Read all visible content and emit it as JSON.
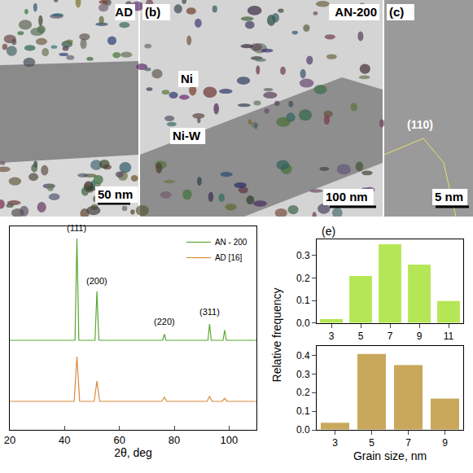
{
  "images": [
    {
      "labels": [
        "AD"
      ],
      "scale_bar": "50 nm"
    },
    {
      "labels": [
        "(b)",
        "AN-200",
        "Ni",
        "Ni-W"
      ],
      "scale_bar": "100 nm"
    },
    {
      "labels": [
        "(c)",
        "(110)"
      ],
      "scale_bar": "5 nm"
    }
  ],
  "chart_data": [
    {
      "type": "line",
      "xlabel": "2θ, deg",
      "legend": "top right",
      "tick_labels": "x",
      "grid": false,
      "xlim": [
        20,
        110
      ],
      "xticks": [
        20,
        40,
        60,
        80,
        100
      ],
      "ylim": [
        0,
        100
      ],
      "series": [
        {
          "name": "AN - 200",
          "color": "#5aa832",
          "x": [
            20,
            43.8,
            44.5,
            45.2,
            51.1,
            51.8,
            52.5,
            75.8,
            76.4,
            77,
            92.3,
            92.9,
            93.5,
            97.8,
            98.4,
            99,
            110
          ],
          "values": [
            44,
            44,
            94,
            44,
            44,
            68,
            44,
            44,
            47,
            44,
            44,
            52,
            44,
            44,
            49,
            44,
            44
          ]
        },
        {
          "name": "AD [16]",
          "color": "#d98a3a",
          "x": [
            20,
            43.5,
            44.5,
            45.5,
            50.8,
            51.8,
            52.8,
            75.5,
            76.4,
            77.3,
            92,
            92.9,
            93.8,
            97.5,
            98.4,
            99.3,
            110
          ],
          "values": [
            14,
            14,
            36,
            14,
            14,
            24,
            14,
            14,
            16,
            14,
            14,
            16.5,
            14,
            14,
            15.5,
            14,
            14
          ]
        }
      ],
      "annotations": [
        {
          "text": "(111)",
          "x": 44.5,
          "y": 96
        },
        {
          "text": "(200)",
          "x": 51.8,
          "y": 70
        },
        {
          "text": "(220)",
          "x": 76.4,
          "y": 50
        },
        {
          "text": "(311)",
          "x": 92.9,
          "y": 55
        }
      ]
    },
    {
      "type": "bar",
      "title": "(e)",
      "color": "#b5e655",
      "x": [
        3,
        5,
        7,
        9,
        11
      ],
      "values": [
        0.02,
        0.21,
        0.35,
        0.26,
        0.1
      ],
      "xlim": [
        2,
        12
      ],
      "xticks": [
        3,
        5,
        7,
        9,
        11
      ],
      "ylim": [
        0,
        0.37
      ],
      "yticks": [
        {
          "value": 0,
          "label": "0.0"
        },
        {
          "value": 0.1,
          "label": "0.1"
        },
        {
          "value": 0.2,
          "label": "0.2"
        },
        {
          "value": 0.3,
          "label": "0.3"
        }
      ]
    },
    {
      "type": "bar",
      "color": "#c9a85c",
      "xlabel": "Grain size, nm",
      "ylabel": "Relative frequency",
      "x": [
        3,
        5,
        7,
        9
      ],
      "values": [
        0.04,
        0.41,
        0.35,
        0.17
      ],
      "xlim": [
        2,
        10
      ],
      "xticks": [
        3,
        5,
        7,
        9
      ],
      "ylim": [
        0,
        0.45
      ],
      "yticks": [
        {
          "value": 0,
          "label": "0.0"
        },
        {
          "value": 0.1,
          "label": "0.1"
        },
        {
          "value": 0.2,
          "label": "0.2"
        },
        {
          "value": 0.3,
          "label": "0.3"
        },
        {
          "value": 0.4,
          "label": "0.4"
        }
      ]
    }
  ]
}
